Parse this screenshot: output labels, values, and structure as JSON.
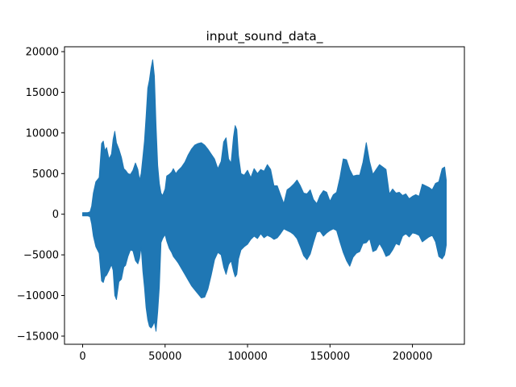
{
  "chart_data": {
    "type": "area",
    "title": "input_sound_data_",
    "xlabel": "",
    "ylabel": "",
    "xlim": [
      -11000,
      231500
    ],
    "ylim": [
      -16000,
      20600
    ],
    "x_ticks": [
      0,
      50000,
      100000,
      150000,
      200000
    ],
    "x_tick_labels": [
      "0",
      "50000",
      "100000",
      "150000",
      "200000"
    ],
    "y_ticks": [
      -15000,
      -10000,
      -5000,
      0,
      5000,
      10000,
      15000,
      20000
    ],
    "y_tick_labels": [
      "−15000",
      "−10000",
      "−5000",
      "0",
      "5000",
      "10000",
      "15000",
      "20000"
    ],
    "grid": false,
    "legend": "none",
    "series": [
      {
        "color": "#1f77b4",
        "x": [
          0,
          3000,
          4500,
          5500,
          6500,
          8000,
          10000,
          11500,
          12500,
          13500,
          14500,
          16000,
          17500,
          18500,
          19500,
          20500,
          22000,
          23500,
          25000,
          26000,
          27500,
          29000,
          30500,
          32000,
          33500,
          34500,
          35500,
          36500,
          37500,
          38500,
          39500,
          40500,
          41500,
          42500,
          43500,
          44500,
          45500,
          46500,
          47500,
          48500,
          50000,
          51000,
          52500,
          54000,
          55000,
          56500,
          58000,
          60000,
          62000,
          64000,
          66000,
          68000,
          70000,
          72000,
          74000,
          76000,
          78000,
          80000,
          82000,
          84000,
          85500,
          87000,
          88500,
          90000,
          91500,
          92500,
          93500,
          94500,
          96000,
          98000,
          100000,
          102000,
          104000,
          106000,
          108000,
          110000,
          112000,
          114000,
          116000,
          118000,
          120000,
          122000,
          124000,
          126000,
          128000,
          130000,
          132000,
          134000,
          136000,
          138000,
          140000,
          142000,
          144000,
          146000,
          148000,
          150000,
          152000,
          154000,
          156000,
          158000,
          160000,
          162000,
          164000,
          166000,
          168000,
          170000,
          172000,
          174000,
          176000,
          178000,
          180000,
          182000,
          184000,
          186000,
          188000,
          190000,
          192000,
          194000,
          196000,
          198000,
          200000,
          202000,
          204000,
          206000,
          208000,
          210000,
          212000,
          214000,
          216000,
          218000,
          219500,
          220500
        ],
        "upper": [
          200,
          200,
          300,
          1000,
          2600,
          4000,
          4500,
          8700,
          9000,
          7800,
          8200,
          6800,
          7400,
          9200,
          10200,
          8800,
          8000,
          7000,
          5600,
          5400,
          5000,
          4900,
          5400,
          6300,
          5500,
          4200,
          5000,
          7000,
          9000,
          12000,
          15500,
          16500,
          18000,
          19000,
          17000,
          11000,
          6000,
          3800,
          2600,
          2300,
          3100,
          4700,
          4900,
          5200,
          5600,
          5000,
          5400,
          5800,
          6400,
          7300,
          8000,
          8500,
          8700,
          8800,
          8500,
          8000,
          7400,
          6800,
          5600,
          6500,
          8900,
          9400,
          6800,
          6300,
          9500,
          10900,
          10400,
          7200,
          5000,
          4800,
          5400,
          4500,
          5600,
          5000,
          5500,
          5300,
          6100,
          5500,
          3500,
          3500,
          2400,
          1300,
          3000,
          3300,
          3700,
          4200,
          3500,
          2600,
          2500,
          3000,
          1800,
          1300,
          2300,
          2900,
          2700,
          1600,
          2400,
          2700,
          4500,
          6800,
          6700,
          5500,
          4700,
          4800,
          4800,
          6400,
          8800,
          6500,
          4900,
          5500,
          6100,
          5800,
          5500,
          2500,
          3100,
          2600,
          2700,
          2300,
          2500,
          1900,
          2200,
          2400,
          2200,
          3700,
          3500,
          3300,
          3000,
          3800,
          4000,
          5600,
          5800,
          4200
        ],
        "lower": [
          -200,
          -200,
          -300,
          -1200,
          -2700,
          -4000,
          -4800,
          -8200,
          -8400,
          -7700,
          -7500,
          -6900,
          -6200,
          -6900,
          -10000,
          -10500,
          -8300,
          -8000,
          -6500,
          -6300,
          -5200,
          -4400,
          -4500,
          -5700,
          -6100,
          -5400,
          -4000,
          -7000,
          -9000,
          -11500,
          -13000,
          -13800,
          -14000,
          -13700,
          -13200,
          -14400,
          -12000,
          -9000,
          -3500,
          -3000,
          -2500,
          -3300,
          -4200,
          -4700,
          -5200,
          -5600,
          -6000,
          -6700,
          -7400,
          -8100,
          -8800,
          -9300,
          -9800,
          -10300,
          -10200,
          -9200,
          -7500,
          -5600,
          -4700,
          -5000,
          -6500,
          -7400,
          -6200,
          -5700,
          -7000,
          -7700,
          -7400,
          -5500,
          -4400,
          -4000,
          -3700,
          -3100,
          -2700,
          -3000,
          -2400,
          -2900,
          -2600,
          -2800,
          -3100,
          -2900,
          -2400,
          -1800,
          -2000,
          -2200,
          -2500,
          -3000,
          -4000,
          -5100,
          -5600,
          -4900,
          -3500,
          -2200,
          -2100,
          -2700,
          -2300,
          -2000,
          -1800,
          -2000,
          -3400,
          -4700,
          -5700,
          -6400,
          -5300,
          -4800,
          -4600,
          -3600,
          -3500,
          -3000,
          -4600,
          -4400,
          -3600,
          -4300,
          -5200,
          -5000,
          -4400,
          -3600,
          -3800,
          -2700,
          -2400,
          -2800,
          -2300,
          -2400,
          -2600,
          -3400,
          -3100,
          -2800,
          -2600,
          -3400,
          -5200,
          -5500,
          -5000,
          -3800
        ]
      }
    ]
  }
}
